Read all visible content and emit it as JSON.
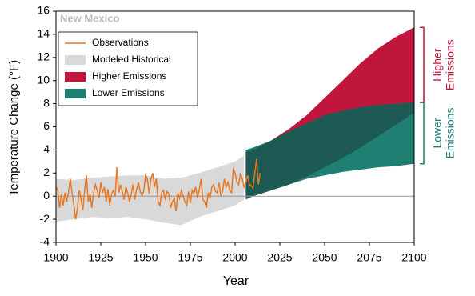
{
  "chart_data": {
    "type": "line",
    "title": "New Mexico",
    "xlabel": "Year",
    "ylabel": "Temperature Change (°F)",
    "xlim": [
      1900,
      2100
    ],
    "ylim": [
      -4,
      16
    ],
    "xticks": [
      1900,
      1925,
      1950,
      1975,
      2000,
      2025,
      2050,
      2075,
      2100
    ],
    "yticks": [
      -4,
      -2,
      0,
      2,
      4,
      6,
      8,
      10,
      12,
      14,
      16
    ],
    "legend": "upper left",
    "zero_line_color": "#999999",
    "overlap_color": "#1d5a54",
    "series": [
      {
        "name": "Observations",
        "color": "#e87722",
        "x": [
          1900,
          1901,
          1902,
          1903,
          1904,
          1905,
          1906,
          1907,
          1908,
          1909,
          1910,
          1911,
          1912,
          1913,
          1914,
          1915,
          1916,
          1917,
          1918,
          1919,
          1920,
          1921,
          1922,
          1923,
          1924,
          1925,
          1926,
          1927,
          1928,
          1929,
          1930,
          1931,
          1932,
          1933,
          1934,
          1935,
          1936,
          1937,
          1938,
          1939,
          1940,
          1941,
          1942,
          1943,
          1944,
          1945,
          1946,
          1947,
          1948,
          1949,
          1950,
          1951,
          1952,
          1953,
          1954,
          1955,
          1956,
          1957,
          1958,
          1959,
          1960,
          1961,
          1962,
          1963,
          1964,
          1965,
          1966,
          1967,
          1968,
          1969,
          1970,
          1971,
          1972,
          1973,
          1974,
          1975,
          1976,
          1977,
          1978,
          1979,
          1980,
          1981,
          1982,
          1983,
          1984,
          1985,
          1986,
          1987,
          1988,
          1989,
          1990,
          1991,
          1992,
          1993,
          1994,
          1995,
          1996,
          1997,
          1998,
          1999,
          2000,
          2001,
          2002,
          2003,
          2004,
          2005,
          2006,
          2007,
          2008,
          2009,
          2010,
          2011,
          2012,
          2013,
          2014
        ],
        "values": [
          0.8,
          0.5,
          -1.0,
          0.2,
          -0.8,
          0.3,
          -0.5,
          0.4,
          1.5,
          0.2,
          -0.8,
          -2.0,
          -1.0,
          0.5,
          -0.3,
          -1.2,
          0.6,
          1.8,
          -0.5,
          0.2,
          -1.0,
          0.3,
          1.0,
          0.5,
          -0.2,
          1.2,
          0.3,
          0.8,
          -0.5,
          0.6,
          -0.8,
          0.2,
          0.5,
          0.0,
          2.5,
          0.3,
          1.0,
          0.4,
          -0.3,
          0.8,
          0.3,
          -0.5,
          0.2,
          1.0,
          -0.3,
          0.6,
          1.2,
          0.4,
          0.0,
          0.5,
          1.8,
          1.5,
          0.2,
          1.5,
          2.0,
          0.8,
          1.5,
          -0.5,
          -0.8,
          0.3,
          0.5,
          -0.3,
          0.4,
          0.2,
          -1.0,
          -0.5,
          -0.2,
          -1.3,
          0.3,
          -0.2,
          0.5,
          0.0,
          -0.5,
          -0.8,
          0.4,
          -0.6,
          0.5,
          0.2,
          0.8,
          -0.2,
          0.6,
          1.5,
          -0.3,
          -0.5,
          -1.0,
          0.3,
          -0.2,
          0.8,
          1.0,
          0.4,
          0.3,
          1.2,
          0.0,
          0.4,
          1.5,
          0.8,
          1.2,
          0.5,
          0.3,
          2.3,
          2.0,
          1.2,
          1.0,
          2.0,
          1.5,
          0.8,
          1.2,
          1.8,
          1.0,
          0.9,
          0.7,
          2.0,
          3.2,
          1.0,
          2.0
        ]
      }
    ],
    "bands": [
      {
        "name": "Modeled Historical",
        "color": "#d9d9d9",
        "x": [
          1900,
          1910,
          1920,
          1930,
          1940,
          1950,
          1960,
          1970,
          1980,
          1990,
          2000,
          2005
        ],
        "lower": [
          -2.2,
          -2.0,
          -1.8,
          -1.9,
          -1.8,
          -2.0,
          -2.3,
          -2.5,
          -1.8,
          -1.3,
          -0.8,
          -0.3
        ],
        "upper": [
          1.5,
          1.4,
          1.6,
          1.7,
          1.8,
          1.8,
          1.5,
          1.6,
          2.0,
          2.5,
          3.0,
          3.5
        ]
      },
      {
        "name": "Higher Emissions",
        "color": "#c0163c",
        "x": [
          2006,
          2010,
          2020,
          2030,
          2040,
          2050,
          2060,
          2070,
          2080,
          2090,
          2100
        ],
        "lower": [
          -0.2,
          0.0,
          0.5,
          1.0,
          1.7,
          2.5,
          3.3,
          4.2,
          5.2,
          6.2,
          7.2
        ],
        "upper": [
          3.8,
          4.0,
          4.8,
          5.8,
          7.0,
          8.5,
          10.0,
          11.5,
          12.8,
          13.8,
          14.6
        ]
      },
      {
        "name": "Lower Emissions",
        "color": "#1f7f73",
        "x": [
          2006,
          2010,
          2020,
          2030,
          2040,
          2050,
          2060,
          2070,
          2080,
          2090,
          2100
        ],
        "lower": [
          -0.3,
          0.0,
          0.5,
          1.0,
          1.5,
          1.8,
          2.1,
          2.3,
          2.5,
          2.6,
          2.8
        ],
        "upper": [
          4.0,
          4.2,
          4.8,
          5.6,
          6.3,
          7.0,
          7.4,
          7.7,
          7.9,
          8.0,
          8.1
        ]
      }
    ],
    "annotations": [
      {
        "lines": [
          "Higher",
          "Emissions"
        ],
        "color": "#c0163c"
      },
      {
        "lines": [
          "Lower",
          "Emissions"
        ],
        "color": "#1f7f73"
      }
    ]
  }
}
